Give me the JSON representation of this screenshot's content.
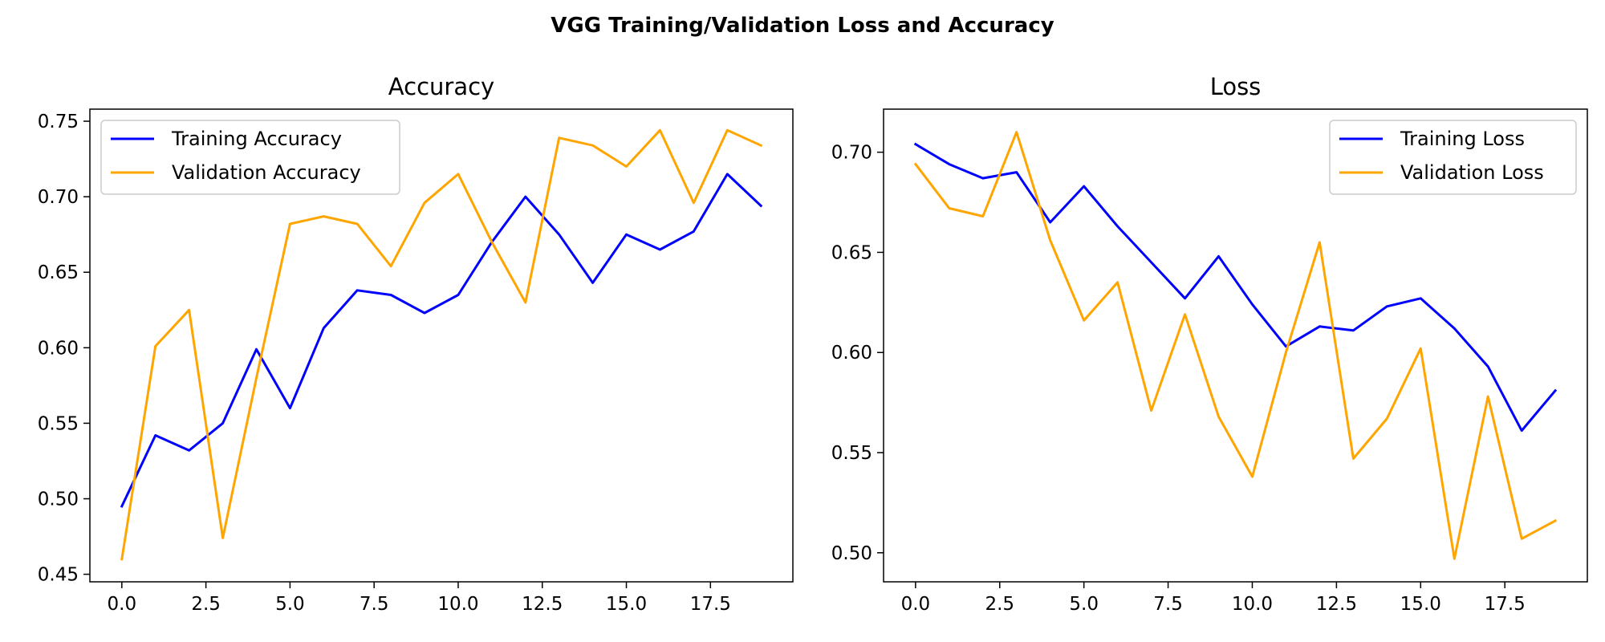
{
  "figure": {
    "suptitle": "VGG Training/Validation Loss and Accuracy"
  },
  "chart_data": [
    {
      "type": "line",
      "title": "Accuracy",
      "xlabel": "",
      "ylabel": "",
      "xlim": [
        -0.95,
        19.95
      ],
      "ylim": [
        0.445,
        0.758
      ],
      "x_ticks": [
        0.0,
        2.5,
        5.0,
        7.5,
        10.0,
        12.5,
        15.0,
        17.5
      ],
      "x_tick_labels": [
        "0.0",
        "2.5",
        "5.0",
        "7.5",
        "10.0",
        "12.5",
        "15.0",
        "17.5"
      ],
      "y_ticks": [
        0.45,
        0.5,
        0.55,
        0.6,
        0.65,
        0.7,
        0.75
      ],
      "y_tick_labels": [
        "0.45",
        "0.50",
        "0.55",
        "0.60",
        "0.65",
        "0.70",
        "0.75"
      ],
      "grid": false,
      "legend": "upper-left",
      "x": [
        0,
        1,
        2,
        3,
        4,
        5,
        6,
        7,
        8,
        9,
        10,
        11,
        12,
        13,
        14,
        15,
        16,
        17,
        18,
        19
      ],
      "series": [
        {
          "name": "Training Accuracy",
          "color": "#0000ff",
          "values": [
            0.495,
            0.542,
            0.532,
            0.55,
            0.599,
            0.56,
            0.613,
            0.638,
            0.635,
            0.623,
            0.635,
            0.67,
            0.7,
            0.675,
            0.643,
            0.675,
            0.665,
            0.677,
            0.715,
            0.694
          ]
        },
        {
          "name": "Validation Accuracy",
          "color": "#ffa500",
          "values": [
            0.46,
            0.601,
            0.625,
            0.474,
            0.58,
            0.682,
            0.687,
            0.682,
            0.654,
            0.696,
            0.715,
            0.67,
            0.63,
            0.739,
            0.734,
            0.72,
            0.744,
            0.696,
            0.744,
            0.734
          ]
        }
      ]
    },
    {
      "type": "line",
      "title": "Loss",
      "xlabel": "",
      "ylabel": "",
      "xlim": [
        -0.95,
        19.95
      ],
      "ylim": [
        0.4855,
        0.7215
      ],
      "x_ticks": [
        0.0,
        2.5,
        5.0,
        7.5,
        10.0,
        12.5,
        15.0,
        17.5
      ],
      "x_tick_labels": [
        "0.0",
        "2.5",
        "5.0",
        "7.5",
        "10.0",
        "12.5",
        "15.0",
        "17.5"
      ],
      "y_ticks": [
        0.5,
        0.55,
        0.6,
        0.65,
        0.7
      ],
      "y_tick_labels": [
        "0.50",
        "0.55",
        "0.60",
        "0.65",
        "0.70"
      ],
      "grid": false,
      "legend": "upper-right",
      "x": [
        0,
        1,
        2,
        3,
        4,
        5,
        6,
        7,
        8,
        9,
        10,
        11,
        12,
        13,
        14,
        15,
        16,
        17,
        18,
        19
      ],
      "series": [
        {
          "name": "Training Loss",
          "color": "#0000ff",
          "values": [
            0.704,
            0.694,
            0.687,
            0.69,
            0.665,
            0.683,
            0.663,
            0.645,
            0.627,
            0.648,
            0.624,
            0.603,
            0.613,
            0.611,
            0.623,
            0.627,
            0.612,
            0.593,
            0.561,
            0.581
          ]
        },
        {
          "name": "Validation Loss",
          "color": "#ffa500",
          "values": [
            0.694,
            0.672,
            0.668,
            0.71,
            0.656,
            0.616,
            0.635,
            0.571,
            0.619,
            0.568,
            0.538,
            0.6,
            0.655,
            0.547,
            0.567,
            0.602,
            0.497,
            0.578,
            0.507,
            0.516
          ]
        }
      ]
    }
  ]
}
